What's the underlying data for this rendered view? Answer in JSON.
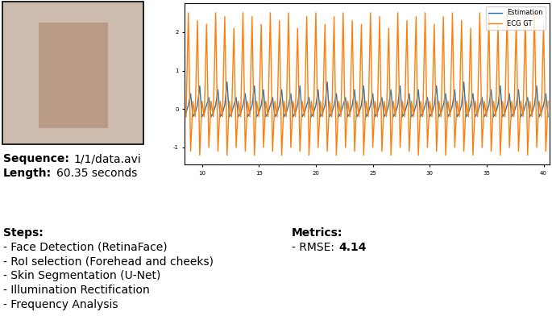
{
  "info": {
    "sequence": {
      "label": "Sequence:",
      "value": "1/1/data.avi"
    },
    "length": {
      "label": "Length:",
      "value": "60.35 seconds"
    }
  },
  "steps": {
    "title": "Steps:",
    "items": [
      "- Face Detection (RetinaFace)",
      "- RoI selection (Forehead and cheeks)",
      "- Skin Segmentation (U-Net)",
      "- Illumination Rectification",
      "- Frequency Analysis"
    ]
  },
  "metrics": {
    "title": "Metrics:",
    "items": [
      {
        "label": "- RMSE:",
        "value": 4.14
      }
    ]
  },
  "chart_data": {
    "type": "line",
    "legend": "upper right",
    "grid": false,
    "xlim": [
      8.5,
      40.5
    ],
    "xticks": [
      10,
      15,
      20,
      25,
      30,
      35,
      40
    ],
    "ylim": [
      -1.45,
      2.75
    ],
    "yticks": [
      -1,
      0,
      1,
      2
    ],
    "x": [
      8.6,
      8.8,
      9.0,
      9.2,
      9.4,
      9.6,
      9.8,
      10.0,
      10.2,
      10.4,
      10.6,
      10.8,
      11.0,
      11.2,
      11.4,
      11.6,
      11.8,
      12.0,
      12.2,
      12.4,
      12.6,
      12.8,
      13.0,
      13.2,
      13.4,
      13.6,
      13.8,
      14.0,
      14.2,
      14.4,
      14.6,
      14.8,
      15.0,
      15.2,
      15.4,
      15.6,
      15.8,
      16.0,
      16.2,
      16.4,
      16.6,
      16.8,
      17.0,
      17.2,
      17.4,
      17.6,
      17.8,
      18.0,
      18.2,
      18.4,
      18.6,
      18.8,
      19.0,
      19.2,
      19.4,
      19.6,
      19.8,
      20.0,
      20.2,
      20.4,
      20.6,
      20.8,
      21.0,
      21.2,
      21.4,
      21.6,
      21.8,
      22.0,
      22.2,
      22.4,
      22.6,
      22.8,
      23.0,
      23.2,
      23.4,
      23.6,
      23.8,
      24.0,
      24.2,
      24.4,
      24.6,
      24.8,
      25.0,
      25.2,
      25.4,
      25.6,
      25.8,
      26.0,
      26.2,
      26.4,
      26.6,
      26.8,
      27.0,
      27.2,
      27.4,
      27.6,
      27.8,
      28.0,
      28.2,
      28.4,
      28.6,
      28.8,
      29.0,
      29.2,
      29.4,
      29.6,
      29.8,
      30.0,
      30.2,
      30.4,
      30.6,
      30.8,
      31.0,
      31.2,
      31.4,
      31.6,
      31.8,
      32.0,
      32.2,
      32.4,
      32.6,
      32.8,
      33.0,
      33.2,
      33.4,
      33.6,
      33.8,
      34.0,
      34.2,
      34.4,
      34.6,
      34.8,
      35.0,
      35.2,
      35.4,
      35.6,
      35.8,
      36.0,
      36.2,
      36.4,
      36.6,
      36.8,
      37.0,
      37.2,
      37.4,
      37.6,
      37.8,
      38.0,
      38.2,
      38.4,
      38.6,
      38.8,
      39.0,
      39.2,
      39.4,
      39.6,
      39.8,
      40.0,
      40.2,
      40.4
    ],
    "series": [
      {
        "name": "Estimation",
        "color": "#1f77b4",
        "values": [
          -0.1,
          0.1,
          0.4,
          -0.2,
          -0.1,
          0.1,
          0.6,
          -0.2,
          -0.1,
          0.1,
          0.3,
          -0.2,
          -0.1,
          0.1,
          0.5,
          -0.2,
          -0.1,
          0.1,
          0.7,
          -0.2,
          -0.1,
          0.1,
          0.3,
          -0.2,
          -0.1,
          0.1,
          0.4,
          -0.2,
          -0.1,
          0.1,
          0.6,
          -0.2,
          -0.1,
          0.1,
          0.5,
          -0.2,
          -0.1,
          0.1,
          0.3,
          -0.2,
          -0.1,
          0.1,
          0.5,
          -0.2,
          -0.1,
          0.1,
          0.4,
          -0.2,
          -0.1,
          0.1,
          0.6,
          -0.2,
          -0.1,
          0.1,
          0.3,
          -0.2,
          -0.1,
          0.1,
          0.5,
          -0.2,
          -0.1,
          0.1,
          0.7,
          -0.2,
          -0.1,
          0.1,
          0.4,
          -0.2,
          -0.1,
          0.1,
          0.3,
          -0.2,
          -0.1,
          0.1,
          0.5,
          -0.2,
          -0.1,
          0.1,
          0.6,
          -0.2,
          -0.1,
          0.1,
          0.4,
          -0.2,
          -0.1,
          0.1,
          0.3,
          -0.2,
          -0.1,
          0.1,
          0.5,
          -0.2,
          -0.1,
          0.1,
          0.6,
          -0.2,
          -0.1,
          0.1,
          0.4,
          -0.2,
          -0.1,
          0.1,
          0.5,
          -0.2,
          -0.1,
          0.1,
          0.3,
          -0.2,
          -0.1,
          0.1,
          0.6,
          -0.2,
          -0.1,
          0.1,
          0.4,
          -0.2,
          -0.1,
          0.1,
          0.5,
          -0.2,
          -0.1,
          0.1,
          0.7,
          -0.2,
          -0.1,
          0.1,
          0.4,
          -0.2,
          -0.1,
          0.1,
          0.3,
          -0.2,
          -0.1,
          0.1,
          0.5,
          -0.2,
          -0.1,
          0.1,
          0.6,
          -0.2,
          -0.1,
          0.1,
          0.4,
          -0.2,
          -0.1,
          0.1,
          0.5,
          -0.2,
          -0.1,
          0.1,
          0.3,
          -0.2,
          -0.1,
          0.1,
          0.6,
          -0.2,
          -0.1,
          0.1,
          0.4,
          -0.2
        ]
      },
      {
        "name": "ECG GT",
        "color": "#ff7f0e",
        "values": [
          -0.2,
          2.5,
          -1.1,
          0.2,
          -0.2,
          2.3,
          -1.2,
          0.2,
          -0.2,
          2.2,
          -1.0,
          0.2,
          -0.2,
          2.5,
          -1.1,
          0.2,
          -0.2,
          2.4,
          -1.2,
          0.2,
          -0.2,
          2.1,
          -1.0,
          0.2,
          -0.2,
          2.5,
          -1.1,
          0.2,
          -0.2,
          2.4,
          -1.2,
          0.2,
          -0.2,
          2.2,
          -1.0,
          0.2,
          -0.2,
          2.5,
          -1.1,
          0.2,
          -0.2,
          2.3,
          -1.2,
          0.2,
          -0.2,
          2.5,
          -1.0,
          0.2,
          -0.2,
          2.1,
          -1.1,
          0.2,
          -0.2,
          2.4,
          -1.2,
          0.2,
          -0.2,
          2.5,
          -1.0,
          0.2,
          -0.2,
          2.2,
          -1.1,
          0.2,
          -0.2,
          2.4,
          -1.2,
          0.2,
          -0.2,
          2.5,
          -1.0,
          0.2,
          -0.2,
          2.3,
          -1.1,
          0.2,
          -0.2,
          2.2,
          -1.2,
          0.2,
          -0.2,
          2.5,
          -1.0,
          0.2,
          -0.2,
          2.4,
          -1.1,
          0.2,
          -0.2,
          2.1,
          -1.2,
          0.2,
          -0.2,
          2.5,
          -1.0,
          0.2,
          -0.2,
          2.3,
          -1.1,
          0.2,
          -0.2,
          2.4,
          -1.2,
          0.2,
          -0.2,
          2.5,
          -1.0,
          0.2,
          -0.2,
          2.2,
          -1.1,
          0.2,
          -0.2,
          2.4,
          -1.2,
          0.2,
          -0.2,
          2.5,
          -1.0,
          0.2,
          -0.2,
          2.3,
          -1.1,
          0.2,
          -0.2,
          2.1,
          -1.2,
          0.2,
          -0.2,
          2.5,
          -1.0,
          0.2,
          -0.2,
          2.4,
          -1.1,
          0.2,
          -0.2,
          2.2,
          -1.2,
          0.2,
          -0.2,
          2.5,
          -1.0,
          0.2,
          -0.2,
          2.3,
          -1.1,
          0.2,
          -0.2,
          2.4,
          -1.2,
          0.2,
          -0.2,
          2.5,
          -1.0,
          0.2,
          -0.2,
          2.2,
          -1.1,
          0.2
        ]
      }
    ]
  }
}
